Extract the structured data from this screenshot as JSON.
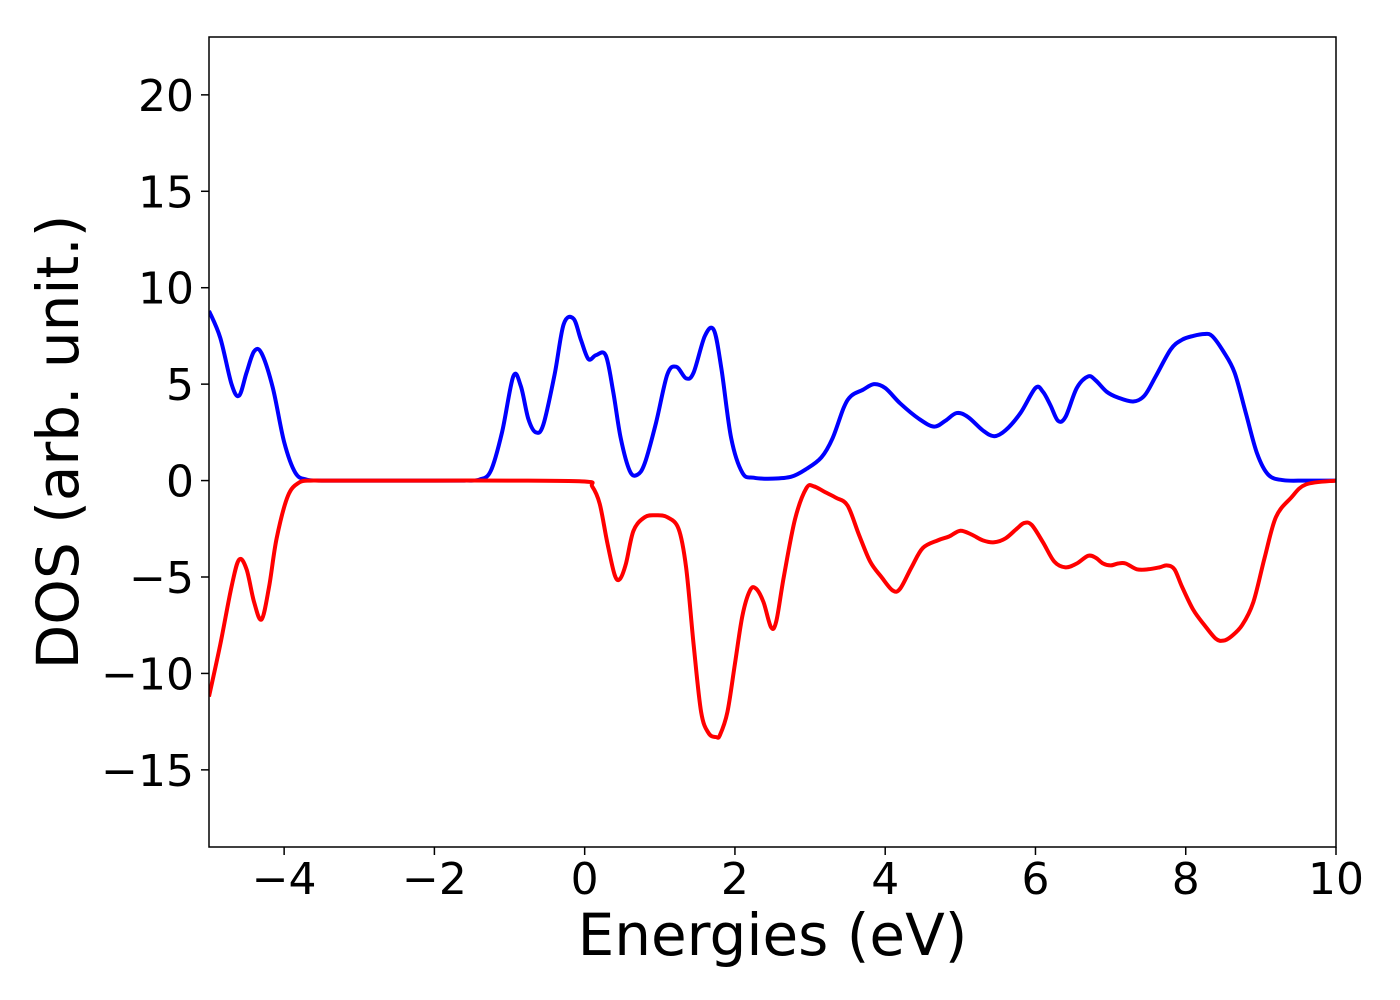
{
  "chart_data": {
    "type": "line",
    "title": "",
    "xlabel": "Energies (eV)",
    "ylabel": "DOS (arb. unit.)",
    "xlim": [
      -5,
      10
    ],
    "ylim": [
      -19,
      23
    ],
    "xticks": [
      -4,
      -2,
      0,
      2,
      4,
      6,
      8,
      10
    ],
    "yticks": [
      -15,
      -10,
      -5,
      0,
      5,
      10,
      15,
      20
    ],
    "xtick_labels": [
      "−4",
      "−2",
      "0",
      "2",
      "4",
      "6",
      "8",
      "10"
    ],
    "ytick_labels": [
      "−15",
      "−10",
      "−5",
      "0",
      "5",
      "10",
      "15",
      "20"
    ],
    "grid": false,
    "legend": "none",
    "series": [
      {
        "color": "#0000ff",
        "x": [
          -5.0,
          -4.85,
          -4.7,
          -4.6,
          -4.5,
          -4.4,
          -4.3,
          -4.15,
          -4.0,
          -3.85,
          -3.7,
          -3.5,
          -3.0,
          -2.0,
          -1.6,
          -1.4,
          -1.25,
          -1.1,
          -0.95,
          -0.85,
          -0.75,
          -0.65,
          -0.55,
          -0.4,
          -0.28,
          -0.15,
          -0.05,
          0.05,
          0.15,
          0.28,
          0.38,
          0.48,
          0.6,
          0.7,
          0.8,
          0.95,
          1.1,
          1.22,
          1.35,
          1.45,
          1.6,
          1.72,
          1.82,
          1.95,
          2.1,
          2.25,
          2.5,
          2.75,
          2.95,
          3.15,
          3.3,
          3.45,
          3.55,
          3.7,
          3.85,
          4.0,
          4.2,
          4.45,
          4.65,
          4.8,
          4.95,
          5.1,
          5.3,
          5.45,
          5.6,
          5.8,
          6.0,
          6.1,
          6.2,
          6.3,
          6.4,
          6.55,
          6.7,
          6.8,
          6.95,
          7.1,
          7.3,
          7.45,
          7.6,
          7.8,
          7.95,
          8.1,
          8.25,
          8.35,
          8.5,
          8.65,
          8.8,
          8.95,
          9.1,
          9.3,
          9.6,
          10.0
        ],
        "y": [
          8.8,
          7.4,
          5.0,
          4.4,
          5.6,
          6.7,
          6.6,
          4.8,
          2.0,
          0.4,
          0.05,
          0.0,
          0.0,
          0.0,
          0.0,
          0.05,
          0.5,
          2.5,
          5.4,
          4.9,
          3.2,
          2.5,
          2.9,
          5.5,
          8.1,
          8.4,
          7.3,
          6.3,
          6.5,
          6.5,
          4.6,
          2.2,
          0.5,
          0.3,
          0.9,
          3.0,
          5.5,
          5.9,
          5.3,
          5.6,
          7.5,
          7.8,
          5.8,
          2.2,
          0.4,
          0.15,
          0.1,
          0.2,
          0.6,
          1.2,
          2.2,
          3.8,
          4.4,
          4.7,
          5.0,
          4.8,
          4.0,
          3.2,
          2.8,
          3.1,
          3.5,
          3.3,
          2.6,
          2.3,
          2.6,
          3.5,
          4.8,
          4.6,
          3.9,
          3.1,
          3.3,
          4.8,
          5.4,
          5.2,
          4.6,
          4.3,
          4.1,
          4.4,
          5.4,
          6.8,
          7.3,
          7.5,
          7.6,
          7.5,
          6.7,
          5.6,
          3.5,
          1.4,
          0.3,
          0.02,
          0.0,
          0.0
        ]
      },
      {
        "color": "#ff0000",
        "x": [
          -5.0,
          -4.85,
          -4.7,
          -4.6,
          -4.5,
          -4.4,
          -4.3,
          -4.2,
          -4.1,
          -3.95,
          -3.8,
          -3.65,
          -3.5,
          -3.0,
          -2.0,
          -1.0,
          0.0,
          0.1,
          0.2,
          0.3,
          0.4,
          0.47,
          0.55,
          0.65,
          0.8,
          0.95,
          1.1,
          1.25,
          1.35,
          1.45,
          1.55,
          1.65,
          1.75,
          1.8,
          1.9,
          2.0,
          2.1,
          2.2,
          2.28,
          2.38,
          2.48,
          2.55,
          2.65,
          2.8,
          2.95,
          3.05,
          3.2,
          3.35,
          3.5,
          3.65,
          3.8,
          3.95,
          4.1,
          4.2,
          4.35,
          4.5,
          4.7,
          4.85,
          5.0,
          5.15,
          5.3,
          5.45,
          5.6,
          5.75,
          5.85,
          5.95,
          6.1,
          6.25,
          6.4,
          6.55,
          6.7,
          6.8,
          6.9,
          7.0,
          7.1,
          7.2,
          7.35,
          7.5,
          7.65,
          7.75,
          7.85,
          7.95,
          8.1,
          8.25,
          8.4,
          8.5,
          8.6,
          8.75,
          8.9,
          9.05,
          9.2,
          9.4,
          9.6,
          10.0
        ],
        "y": [
          -11.2,
          -8.5,
          -5.5,
          -4.1,
          -4.6,
          -6.3,
          -7.2,
          -5.5,
          -3.0,
          -0.8,
          -0.1,
          0.0,
          0.0,
          0.0,
          0.0,
          0.0,
          -0.05,
          -0.3,
          -1.2,
          -3.2,
          -4.9,
          -5.1,
          -4.3,
          -2.6,
          -1.9,
          -1.8,
          -1.9,
          -2.5,
          -4.5,
          -8.5,
          -12.0,
          -13.1,
          -13.3,
          -13.2,
          -12.0,
          -9.5,
          -7.0,
          -5.7,
          -5.6,
          -6.3,
          -7.6,
          -7.3,
          -5.0,
          -2.0,
          -0.4,
          -0.3,
          -0.6,
          -0.9,
          -1.3,
          -2.8,
          -4.2,
          -5.0,
          -5.7,
          -5.6,
          -4.5,
          -3.5,
          -3.1,
          -2.9,
          -2.6,
          -2.8,
          -3.1,
          -3.2,
          -3.0,
          -2.5,
          -2.2,
          -2.3,
          -3.2,
          -4.2,
          -4.5,
          -4.3,
          -3.9,
          -4.0,
          -4.3,
          -4.4,
          -4.3,
          -4.3,
          -4.6,
          -4.6,
          -4.5,
          -4.4,
          -4.6,
          -5.5,
          -6.7,
          -7.5,
          -8.2,
          -8.3,
          -8.1,
          -7.5,
          -6.3,
          -4.0,
          -1.9,
          -0.9,
          -0.2,
          0.0
        ]
      }
    ]
  }
}
